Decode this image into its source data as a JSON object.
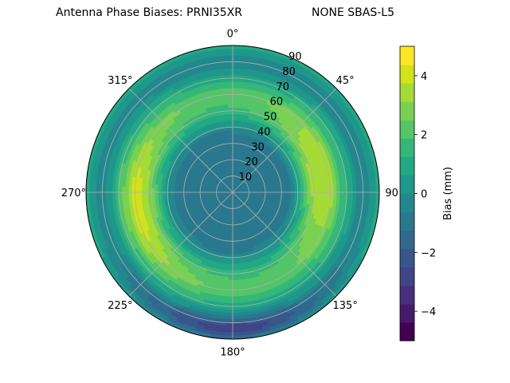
{
  "chart_data": {
    "type": "polar-contour",
    "title_left": "Antenna Phase Biases: PRNI35XR",
    "title_right": "NONE SBAS-L5",
    "theta_tick_labels": [
      "0°",
      "45°",
      "90",
      "135°",
      "180°",
      "225°",
      "270°",
      "315°"
    ],
    "theta_ticks_deg": [
      0,
      45,
      90,
      135,
      180,
      225,
      270,
      315
    ],
    "theta_zero_location": "N",
    "theta_direction": "clockwise",
    "radial_ticks": [
      10,
      20,
      30,
      40,
      50,
      60,
      70,
      80,
      90
    ],
    "radial_tick_labels": [
      "10",
      "20",
      "30",
      "40",
      "50",
      "60",
      "70",
      "80",
      "90"
    ],
    "rlim": [
      0,
      90
    ],
    "grid": true,
    "colorbar": {
      "label": "Bias (mm)",
      "min": -5,
      "max": 5,
      "tick_values": [
        -4,
        -2,
        0,
        2,
        4
      ],
      "tick_labels": [
        "−4",
        "−2",
        "0",
        "2",
        "4"
      ],
      "levels": [
        -5,
        -4.375,
        -3.75,
        -3.125,
        -2.5,
        -1.875,
        -1.25,
        -0.625,
        0,
        0.625,
        1.25,
        1.875,
        2.5,
        3.125,
        3.75,
        4.375,
        5
      ],
      "colormap": [
        "#440154",
        "#481a6c",
        "#472f7d",
        "#414487",
        "#39568c",
        "#31688e",
        "#2a788e",
        "#23888e",
        "#1f988b",
        "#22a884",
        "#35b779",
        "#54c568",
        "#7ad151",
        "#a5db36",
        "#d2e21b",
        "#fde725"
      ]
    },
    "field_model": {
      "description_units": "bias in mm as function of elevation-angle ring r (0 center to 90 edge) and azimuth",
      "baseline_by_r": [
        [
          0,
          -1.0
        ],
        [
          20,
          -1.2
        ],
        [
          35,
          -1.0
        ],
        [
          50,
          1.5
        ],
        [
          60,
          2.2
        ],
        [
          70,
          1.0
        ],
        [
          80,
          -0.5
        ],
        [
          90,
          1.0
        ]
      ],
      "lobes": [
        {
          "azimuth_deg": 80,
          "r_center": 52,
          "amplitude_mm": 2.0
        },
        {
          "azimuth_deg": 262,
          "r_center": 58,
          "amplitude_mm": 2.0
        }
      ],
      "low_region": {
        "azimuth_deg": 180,
        "r_center": 85,
        "amplitude_mm": -3.0
      }
    }
  }
}
